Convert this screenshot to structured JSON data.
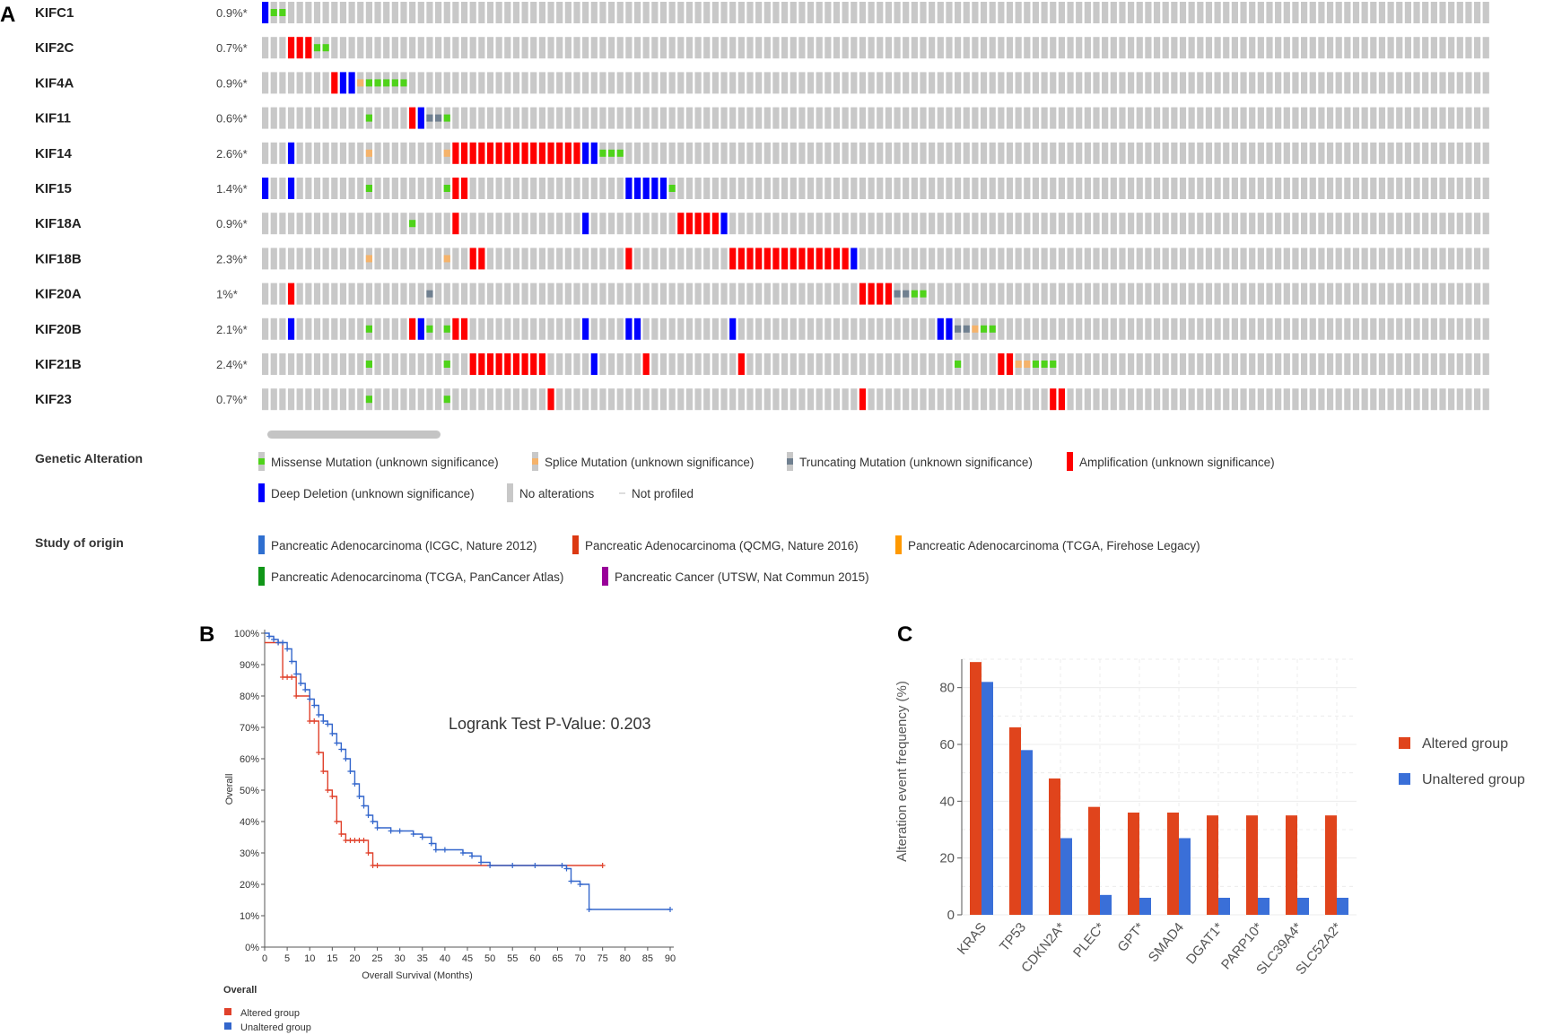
{
  "panels": {
    "a": "A",
    "b": "B",
    "c": "C"
  },
  "oncoprint": {
    "n_samples": 142,
    "colors": {
      "missense": "#4fd31a",
      "splice": "#f5b36b",
      "truncating": "#708090",
      "amplification": "#ff0000",
      "deep_deletion": "#0000ff",
      "none": "#c8c8c8"
    },
    "genes": [
      {
        "name": "KIFC1",
        "pct": "0.9%*",
        "alterations": [
          [
            0,
            "deep_deletion"
          ],
          [
            1,
            "missense"
          ],
          [
            2,
            "missense"
          ]
        ]
      },
      {
        "name": "KIF2C",
        "pct": "0.7%*",
        "alterations": [
          [
            3,
            "amplification"
          ],
          [
            4,
            "amplification"
          ],
          [
            5,
            "amplification"
          ],
          [
            6,
            "missense"
          ],
          [
            7,
            "missense"
          ]
        ]
      },
      {
        "name": "KIF4A",
        "pct": "0.9%*",
        "alterations": [
          [
            8,
            "amplification"
          ],
          [
            9,
            "deep_deletion"
          ],
          [
            10,
            "deep_deletion"
          ],
          [
            11,
            "splice"
          ],
          [
            12,
            "missense"
          ],
          [
            13,
            "missense"
          ],
          [
            14,
            "missense"
          ],
          [
            15,
            "missense"
          ],
          [
            16,
            "missense"
          ]
        ]
      },
      {
        "name": "KIF11",
        "pct": "0.6%*",
        "alterations": [
          [
            12,
            "missense"
          ],
          [
            17,
            "amplification"
          ],
          [
            18,
            "deep_deletion"
          ],
          [
            19,
            "truncating"
          ],
          [
            20,
            "truncating"
          ],
          [
            21,
            "missense"
          ]
        ]
      },
      {
        "name": "KIF14",
        "pct": "2.6%*",
        "alterations": [
          [
            3,
            "deep_deletion"
          ],
          [
            12,
            "splice"
          ],
          [
            21,
            "splice"
          ],
          [
            22,
            "amplification"
          ],
          [
            23,
            "amplification"
          ],
          [
            24,
            "amplification"
          ],
          [
            25,
            "amplification"
          ],
          [
            26,
            "amplification"
          ],
          [
            27,
            "amplification"
          ],
          [
            28,
            "amplification"
          ],
          [
            29,
            "amplification"
          ],
          [
            30,
            "amplification"
          ],
          [
            31,
            "amplification"
          ],
          [
            32,
            "amplification"
          ],
          [
            33,
            "amplification"
          ],
          [
            34,
            "amplification"
          ],
          [
            35,
            "amplification"
          ],
          [
            36,
            "amplification"
          ],
          [
            37,
            "deep_deletion"
          ],
          [
            38,
            "deep_deletion"
          ],
          [
            39,
            "missense"
          ],
          [
            40,
            "missense"
          ],
          [
            41,
            "missense"
          ]
        ]
      },
      {
        "name": "KIF15",
        "pct": "1.4%*",
        "alterations": [
          [
            0,
            "deep_deletion"
          ],
          [
            3,
            "deep_deletion"
          ],
          [
            12,
            "missense"
          ],
          [
            21,
            "missense"
          ],
          [
            22,
            "amplification"
          ],
          [
            23,
            "amplification"
          ],
          [
            42,
            "deep_deletion"
          ],
          [
            43,
            "deep_deletion"
          ],
          [
            44,
            "deep_deletion"
          ],
          [
            45,
            "deep_deletion"
          ],
          [
            46,
            "deep_deletion"
          ],
          [
            47,
            "missense"
          ]
        ]
      },
      {
        "name": "KIF18A",
        "pct": "0.9%*",
        "alterations": [
          [
            17,
            "missense"
          ],
          [
            22,
            "amplification"
          ],
          [
            37,
            "deep_deletion"
          ],
          [
            48,
            "amplification"
          ],
          [
            49,
            "amplification"
          ],
          [
            50,
            "amplification"
          ],
          [
            51,
            "amplification"
          ],
          [
            52,
            "amplification"
          ],
          [
            53,
            "deep_deletion"
          ]
        ]
      },
      {
        "name": "KIF18B",
        "pct": "2.3%*",
        "alterations": [
          [
            12,
            "splice"
          ],
          [
            21,
            "splice"
          ],
          [
            24,
            "amplification"
          ],
          [
            25,
            "amplification"
          ],
          [
            42,
            "amplification"
          ],
          [
            54,
            "amplification"
          ],
          [
            55,
            "amplification"
          ],
          [
            56,
            "amplification"
          ],
          [
            57,
            "amplification"
          ],
          [
            58,
            "amplification"
          ],
          [
            59,
            "amplification"
          ],
          [
            60,
            "amplification"
          ],
          [
            61,
            "amplification"
          ],
          [
            62,
            "amplification"
          ],
          [
            63,
            "amplification"
          ],
          [
            64,
            "amplification"
          ],
          [
            65,
            "amplification"
          ],
          [
            66,
            "amplification"
          ],
          [
            67,
            "amplification"
          ],
          [
            68,
            "deep_deletion"
          ]
        ]
      },
      {
        "name": "KIF20A",
        "pct": "1%*",
        "alterations": [
          [
            3,
            "amplification"
          ],
          [
            19,
            "truncating"
          ],
          [
            69,
            "amplification"
          ],
          [
            70,
            "amplification"
          ],
          [
            71,
            "amplification"
          ],
          [
            72,
            "amplification"
          ],
          [
            73,
            "truncating"
          ],
          [
            74,
            "truncating"
          ],
          [
            75,
            "missense"
          ],
          [
            76,
            "missense"
          ]
        ]
      },
      {
        "name": "KIF20B",
        "pct": "2.1%*",
        "alterations": [
          [
            3,
            "deep_deletion"
          ],
          [
            12,
            "missense"
          ],
          [
            17,
            "amplification"
          ],
          [
            18,
            "deep_deletion"
          ],
          [
            19,
            "missense"
          ],
          [
            21,
            "missense"
          ],
          [
            22,
            "amplification"
          ],
          [
            23,
            "amplification"
          ],
          [
            37,
            "deep_deletion"
          ],
          [
            42,
            "deep_deletion"
          ],
          [
            43,
            "deep_deletion"
          ],
          [
            54,
            "deep_deletion"
          ],
          [
            78,
            "deep_deletion"
          ],
          [
            79,
            "deep_deletion"
          ],
          [
            80,
            "truncating"
          ],
          [
            81,
            "truncating"
          ],
          [
            82,
            "splice"
          ],
          [
            83,
            "missense"
          ],
          [
            84,
            "missense"
          ]
        ]
      },
      {
        "name": "KIF21B",
        "pct": "2.4%*",
        "alterations": [
          [
            12,
            "missense"
          ],
          [
            21,
            "missense"
          ],
          [
            24,
            "amplification"
          ],
          [
            25,
            "amplification"
          ],
          [
            26,
            "amplification"
          ],
          [
            27,
            "amplification"
          ],
          [
            28,
            "amplification"
          ],
          [
            29,
            "amplification"
          ],
          [
            30,
            "amplification"
          ],
          [
            31,
            "amplification"
          ],
          [
            32,
            "amplification"
          ],
          [
            38,
            "deep_deletion"
          ],
          [
            44,
            "amplification"
          ],
          [
            55,
            "amplification"
          ],
          [
            80,
            "missense"
          ],
          [
            85,
            "amplification"
          ],
          [
            86,
            "amplification"
          ],
          [
            87,
            "splice"
          ],
          [
            88,
            "splice"
          ],
          [
            89,
            "missense"
          ],
          [
            90,
            "missense"
          ],
          [
            91,
            "missense"
          ]
        ]
      },
      {
        "name": "KIF23",
        "pct": "0.7%*",
        "alterations": [
          [
            12,
            "missense"
          ],
          [
            21,
            "missense"
          ],
          [
            33,
            "amplification"
          ],
          [
            69,
            "amplification"
          ],
          [
            91,
            "amplification"
          ],
          [
            92,
            "amplification"
          ]
        ]
      }
    ]
  },
  "legend": {
    "genetic_title": "Genetic Alteration",
    "missense": "Missense Mutation (unknown significance)",
    "splice": "Splice Mutation (unknown significance)",
    "truncating": "Truncating Mutation (unknown significance)",
    "amplification": "Amplification (unknown significance)",
    "deep_deletion": "Deep Deletion (unknown significance)",
    "no_alterations": "No alterations",
    "not_profiled": "Not profiled",
    "study_title": "Study of origin",
    "studies": [
      {
        "name": "Pancreatic Adenocarcinoma (ICGC, Nature 2012)",
        "color": "#2f6fd0"
      },
      {
        "name": "Pancreatic Adenocarcinoma (QCMG, Nature 2016)",
        "color": "#dc3912"
      },
      {
        "name": "Pancreatic Adenocarcinoma (TCGA, Firehose Legacy)",
        "color": "#ff9900"
      },
      {
        "name": "Pancreatic Adenocarcinoma (TCGA, PanCancer Atlas)",
        "color": "#109618"
      },
      {
        "name": "Pancreatic Cancer (UTSW, Nat Commun 2015)",
        "color": "#990099"
      }
    ]
  },
  "chart_data": [
    {
      "type": "line",
      "title": "Logrank Test P-Value: 0.203",
      "xlabel": "Overall Survival (Months)",
      "ylabel": "Overall",
      "xlim": [
        0,
        90
      ],
      "ylim": [
        0,
        100
      ],
      "xticks": [
        "0",
        "5",
        "10",
        "15",
        "20",
        "25",
        "30",
        "35",
        "40",
        "45",
        "50",
        "55",
        "60",
        "65",
        "70",
        "75",
        "80",
        "85",
        "90"
      ],
      "yticks": [
        "0%",
        "10%",
        "20%",
        "30%",
        "40%",
        "50%",
        "60%",
        "70%",
        "80%",
        "90%",
        "100%"
      ],
      "legend_title": "Overall",
      "series": [
        {
          "name": "Altered group",
          "color": "#e0412b",
          "x": [
            0,
            3,
            4,
            5,
            6,
            7,
            10,
            11,
            12,
            13,
            14,
            15,
            16,
            17,
            18,
            19,
            20,
            21,
            22,
            23,
            24,
            25,
            75
          ],
          "y": [
            97,
            97,
            86,
            86,
            86,
            80,
            72,
            72,
            62,
            56,
            50,
            48,
            40,
            36,
            34,
            34,
            34,
            34,
            34,
            30,
            26,
            26,
            26
          ]
        },
        {
          "name": "Unaltered group",
          "color": "#3366cc",
          "x": [
            0,
            1,
            2,
            3,
            4,
            5,
            6,
            7,
            8,
            9,
            10,
            11,
            12,
            13,
            14,
            15,
            16,
            17,
            18,
            19,
            20,
            21,
            22,
            23,
            24,
            25,
            28,
            30,
            33,
            35,
            37,
            38,
            40,
            44,
            46,
            48,
            50,
            55,
            60,
            66,
            67,
            68,
            70,
            72,
            90
          ],
          "y": [
            100,
            99,
            98,
            97,
            97,
            95,
            91,
            87,
            84,
            82,
            79,
            77,
            74,
            72,
            71,
            68,
            65,
            63,
            60,
            56,
            52,
            48,
            45,
            42,
            40,
            38,
            37,
            37,
            36,
            35,
            33,
            31,
            31,
            30,
            29,
            27,
            26,
            26,
            26,
            26,
            25,
            21,
            20,
            12,
            12
          ]
        }
      ]
    },
    {
      "type": "bar",
      "title": "",
      "xlabel": "",
      "ylabel": "Alteration event frequency (%)",
      "ylim": [
        0,
        90
      ],
      "yticks": [
        "0",
        "20",
        "40",
        "60",
        "80"
      ],
      "categories": [
        "KRAS",
        "TP53",
        "CDKN2A*",
        "PLEC*",
        "GPT*",
        "SMAD4",
        "DGAT1*",
        "PARP10*",
        "SLC39A4*",
        "SLC52A2*"
      ],
      "series": [
        {
          "name": "Altered group",
          "color": "#e0441c",
          "values": [
            89,
            66,
            48,
            38,
            36,
            36,
            35,
            35,
            35,
            35
          ]
        },
        {
          "name": "Unaltered group",
          "color": "#3a6fd8",
          "values": [
            82,
            58,
            27,
            7,
            6,
            27,
            6,
            6,
            6,
            6
          ]
        }
      ]
    }
  ]
}
